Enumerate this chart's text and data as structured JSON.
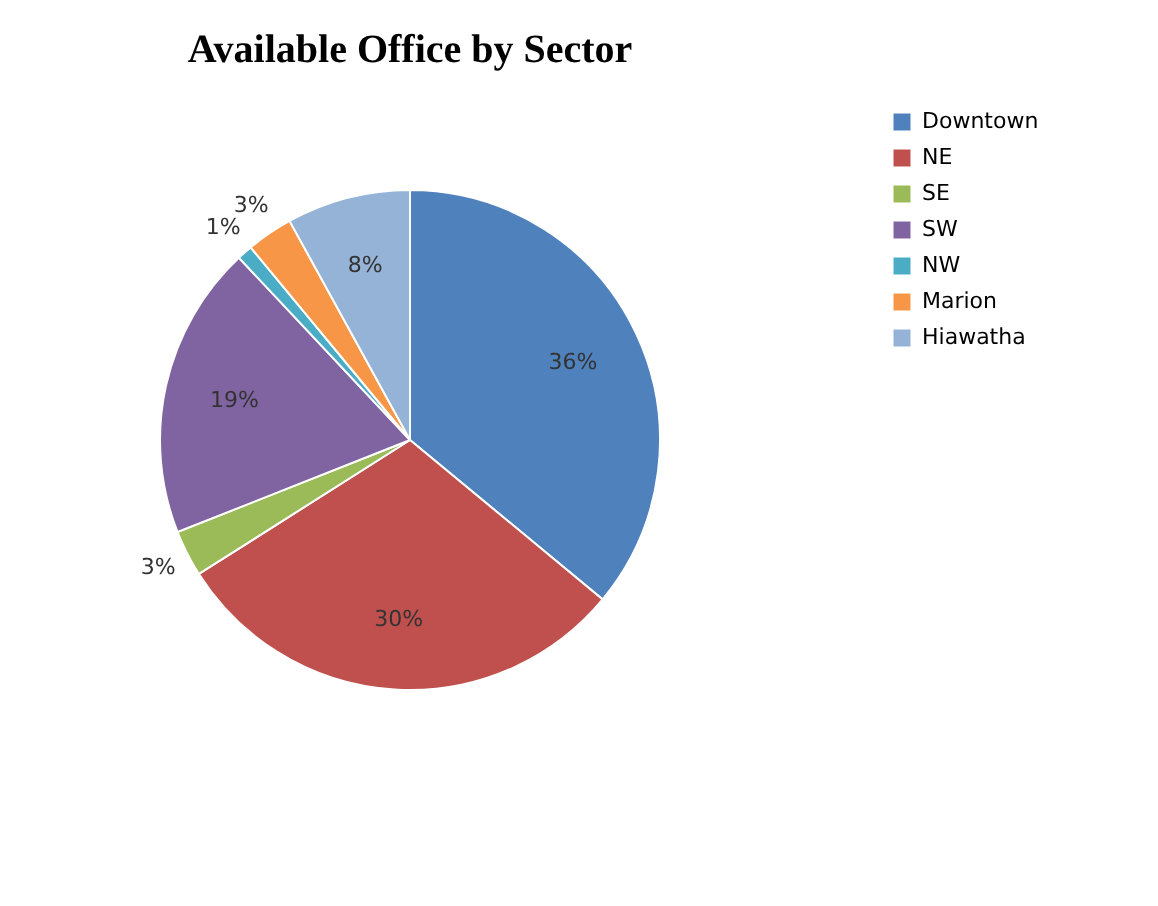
{
  "chart_data": {
    "type": "pie",
    "title": "Available Office by Sector",
    "categories": [
      "Downtown",
      "NE",
      "SE",
      "SW",
      "NW",
      "Marion",
      "Hiawatha"
    ],
    "values": [
      36,
      30,
      3,
      19,
      1,
      3,
      8
    ],
    "colors": [
      "#4f81bd",
      "#c0504d",
      "#9bbb59",
      "#8064a2",
      "#4bacc6",
      "#f79646",
      "#95b3d7"
    ],
    "value_labels": [
      "36%",
      "30%",
      "3%",
      "19%",
      "1%",
      "3%",
      "8%"
    ],
    "legend": "right"
  }
}
